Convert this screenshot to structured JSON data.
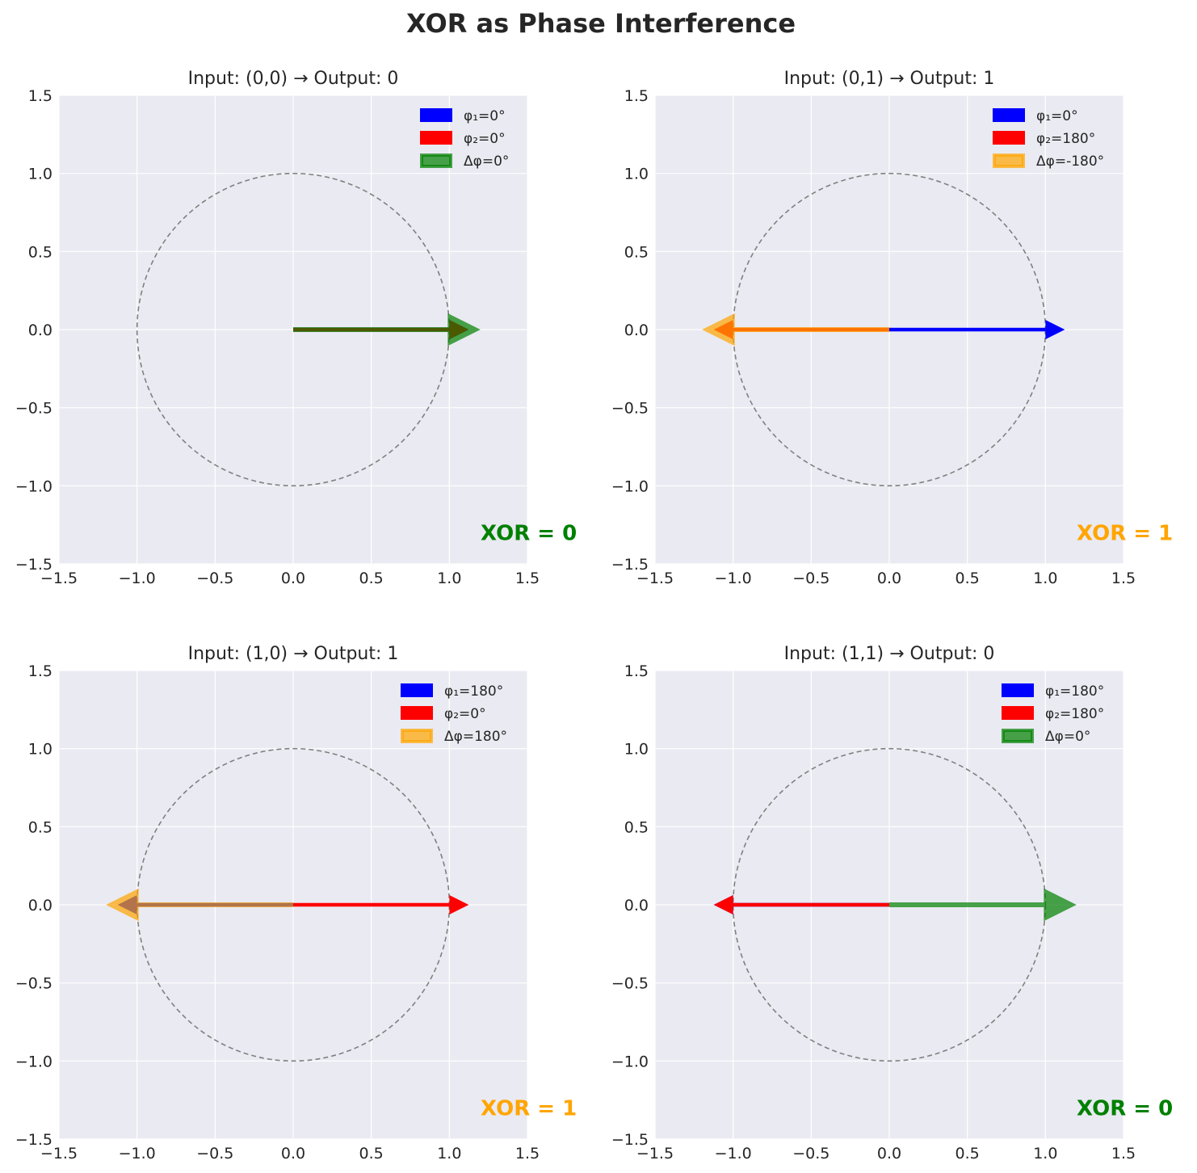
{
  "title": "XOR as Phase Interference",
  "colors": {
    "axes_bg": "#eaeaf2",
    "grid": "#ffffff",
    "phi1": "#0000ff",
    "phi2": "#ff0000",
    "green": "#008000",
    "orange": "#ffa500",
    "circle": "#808080"
  },
  "chart_data": [
    {
      "type": "vector-diagram",
      "title": "Input: (0,0) → Output: 0",
      "xlim": [
        -1.5,
        1.5
      ],
      "ylim": [
        -1.5,
        1.5
      ],
      "xticks": [
        "−1.5",
        "−1.0",
        "−0.5",
        "0.0",
        "0.5",
        "1.0",
        "1.5"
      ],
      "yticks": [
        "1.5",
        "1.0",
        "0.5",
        "0.0",
        "−0.5",
        "−1.0",
        "−1.5"
      ],
      "grid": true,
      "unit_circle": true,
      "legend_position": "upper right",
      "vectors": [
        {
          "name": "φ₁=0°",
          "color": "#0000ff",
          "x": 1,
          "y": 0
        },
        {
          "name": "φ₂=0°",
          "color": "#ff0000",
          "x": 1,
          "y": 0
        },
        {
          "name": "Δφ=0°",
          "color": "#008000",
          "x": 1,
          "y": 0
        }
      ],
      "annotation": {
        "text": "XOR = 0",
        "color": "#008000",
        "x": 1.2,
        "y": -1.3
      }
    },
    {
      "type": "vector-diagram",
      "title": "Input: (0,1) → Output: 1",
      "xlim": [
        -1.5,
        1.5
      ],
      "ylim": [
        -1.5,
        1.5
      ],
      "xticks": [
        "−1.5",
        "−1.0",
        "−0.5",
        "0.0",
        "0.5",
        "1.0",
        "1.5"
      ],
      "yticks": [
        "1.5",
        "1.0",
        "0.5",
        "0.0",
        "−0.5",
        "−1.0",
        "−1.5"
      ],
      "grid": true,
      "unit_circle": true,
      "legend_position": "upper right",
      "vectors": [
        {
          "name": "φ₁=0°",
          "color": "#0000ff",
          "x": 1,
          "y": 0
        },
        {
          "name": "φ₂=180°",
          "color": "#ff0000",
          "x": -1,
          "y": 0
        },
        {
          "name": "Δφ=-180°",
          "color": "#ffa500",
          "x": -1,
          "y": 0
        }
      ],
      "annotation": {
        "text": "XOR = 1",
        "color": "#ffa500",
        "x": 1.2,
        "y": -1.3
      }
    },
    {
      "type": "vector-diagram",
      "title": "Input: (1,0) → Output: 1",
      "xlim": [
        -1.5,
        1.5
      ],
      "ylim": [
        -1.5,
        1.5
      ],
      "xticks": [
        "−1.5",
        "−1.0",
        "−0.5",
        "0.0",
        "0.5",
        "1.0",
        "1.5"
      ],
      "yticks": [
        "1.5",
        "1.0",
        "0.5",
        "0.0",
        "−0.5",
        "−1.0",
        "−1.5"
      ],
      "grid": true,
      "unit_circle": true,
      "legend_position": "upper right",
      "vectors": [
        {
          "name": "φ₁=180°",
          "color": "#0000ff",
          "x": -1,
          "y": 0
        },
        {
          "name": "φ₂=0°",
          "color": "#ff0000",
          "x": 1,
          "y": 0
        },
        {
          "name": "Δφ=180°",
          "color": "#ffa500",
          "x": -1,
          "y": 0
        }
      ],
      "annotation": {
        "text": "XOR = 1",
        "color": "#ffa500",
        "x": 1.2,
        "y": -1.3
      }
    },
    {
      "type": "vector-diagram",
      "title": "Input: (1,1) → Output: 0",
      "xlim": [
        -1.5,
        1.5
      ],
      "ylim": [
        -1.5,
        1.5
      ],
      "xticks": [
        "−1.5",
        "−1.0",
        "−0.5",
        "0.0",
        "0.5",
        "1.0",
        "1.5"
      ],
      "yticks": [
        "1.5",
        "1.0",
        "0.5",
        "0.0",
        "−0.5",
        "−1.0",
        "−1.5"
      ],
      "grid": true,
      "unit_circle": true,
      "legend_position": "upper right",
      "vectors": [
        {
          "name": "φ₁=180°",
          "color": "#0000ff",
          "x": -1,
          "y": 0
        },
        {
          "name": "φ₂=180°",
          "color": "#ff0000",
          "x": -1,
          "y": 0
        },
        {
          "name": "Δφ=0°",
          "color": "#008000",
          "x": 1,
          "y": 0
        }
      ],
      "annotation": {
        "text": "XOR = 0",
        "color": "#008000",
        "x": 1.2,
        "y": -1.3
      }
    }
  ]
}
